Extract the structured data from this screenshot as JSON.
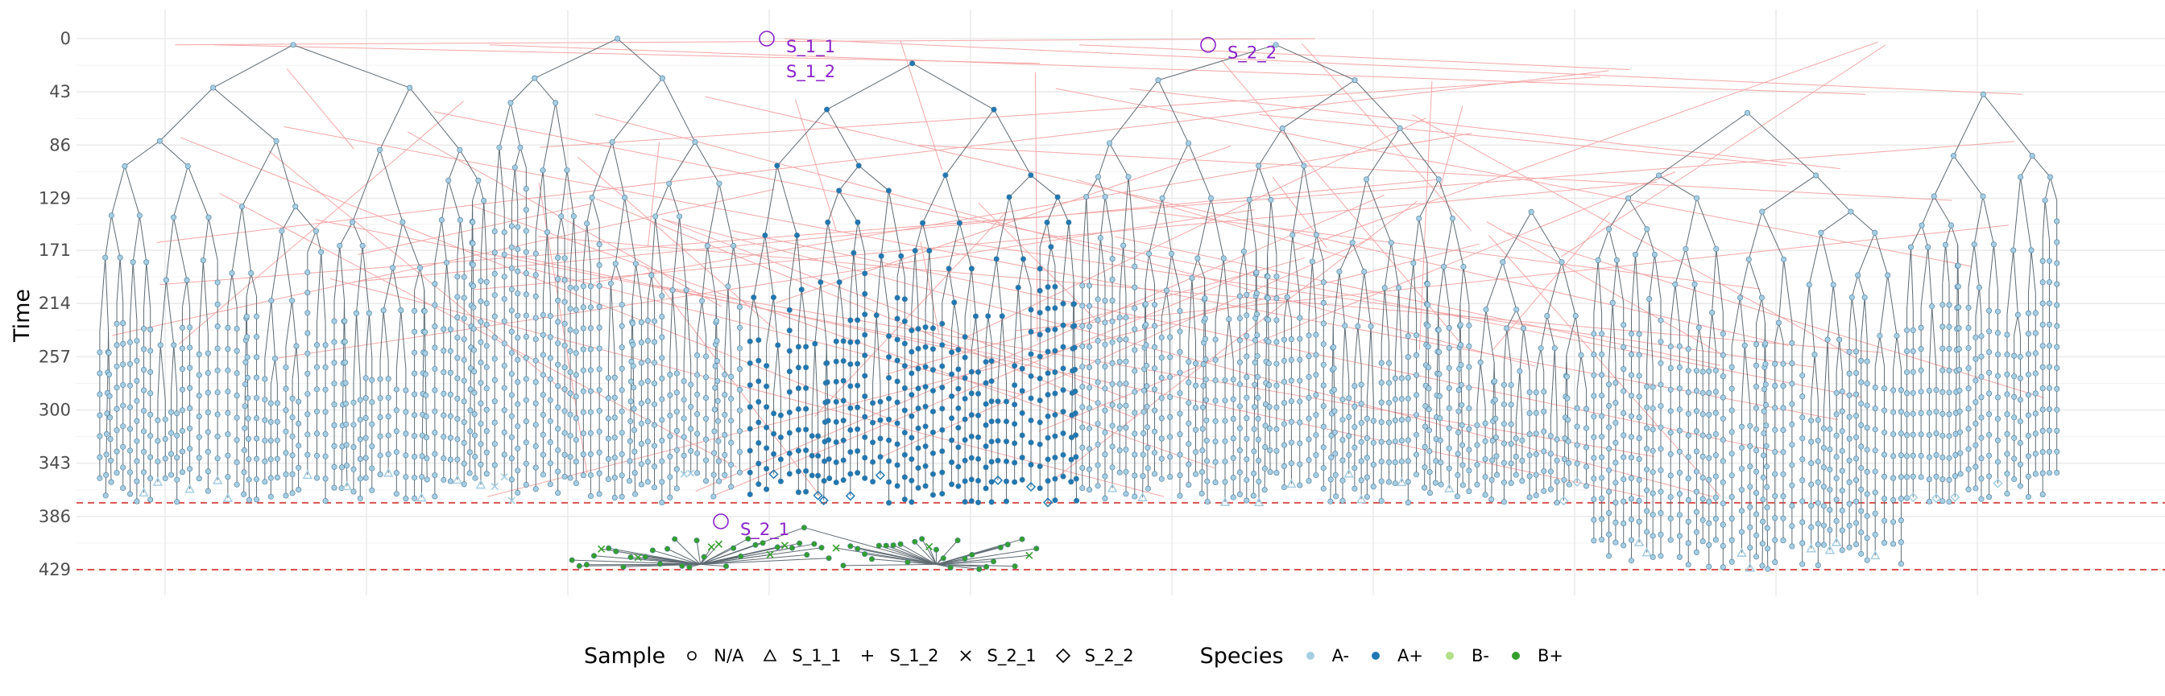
{
  "chart_data": {
    "type": "tree",
    "ylabel": "Time",
    "xlabel": "",
    "y_ticks": [
      0,
      43,
      86,
      129,
      171,
      214,
      257,
      300,
      343,
      386,
      429
    ],
    "ylim": [
      0,
      429
    ],
    "y_reversed": true,
    "reference_lines": [
      {
        "time": 375,
        "style": "dashed",
        "color": "#d9534f"
      },
      {
        "time": 429,
        "style": "dashed",
        "color": "#d9534f"
      }
    ],
    "annotations": [
      {
        "label": "S_1_1",
        "x_index": 0.295,
        "time": 0
      },
      {
        "label": "S_1_2",
        "x_index": 0.295,
        "time": 20
      },
      {
        "label": "S_2_2",
        "x_index": 0.5,
        "time": 5
      },
      {
        "label": "S_2_1",
        "x_index": 0.27,
        "time": 390
      }
    ],
    "clusters": [
      {
        "x_range": [
          0.0,
          0.2
        ],
        "root_time": 5,
        "leaf_time": 375,
        "species": "A-"
      },
      {
        "x_range": [
          0.2,
          0.33
        ],
        "root_time": 0,
        "leaf_time": 375,
        "species": "A-"
      },
      {
        "x_range": [
          0.33,
          0.5
        ],
        "root_time": 20,
        "leaf_time": 375,
        "species": "A+"
      },
      {
        "x_range": [
          0.5,
          0.7
        ],
        "root_time": 5,
        "leaf_time": 375,
        "species": "A-"
      },
      {
        "x_range": [
          0.7,
          0.76
        ],
        "root_time": 140,
        "leaf_time": 375,
        "species": "A-"
      },
      {
        "x_range": [
          0.76,
          0.92
        ],
        "root_time": 60,
        "leaf_time": 429,
        "species": "A-"
      },
      {
        "x_range": [
          0.92,
          1.0
        ],
        "root_time": 45,
        "leaf_time": 375,
        "species": "A-"
      },
      {
        "x_range": [
          0.24,
          0.48
        ],
        "root_time": 395,
        "leaf_time": 429,
        "species": "B+"
      }
    ]
  },
  "legend": {
    "sample": {
      "title": "Sample",
      "items": [
        {
          "label": "N/A",
          "shape": "circle"
        },
        {
          "label": "S_1_1",
          "shape": "triangle"
        },
        {
          "label": "S_1_2",
          "shape": "plus"
        },
        {
          "label": "S_2_1",
          "shape": "cross"
        },
        {
          "label": "S_2_2",
          "shape": "diamond"
        }
      ]
    },
    "species": {
      "title": "Species",
      "items": [
        {
          "label": "A-",
          "color": "#a6cee3"
        },
        {
          "label": "A+",
          "color": "#1f78b4"
        },
        {
          "label": "B-",
          "color": "#b2df8a"
        },
        {
          "label": "B+",
          "color": "#33a02c"
        }
      ]
    }
  },
  "colors": {
    "branch": "#5f6b73",
    "transmission": "#f4a6a6",
    "grid": "#ebebeb",
    "annotation": "#8a22c9"
  }
}
